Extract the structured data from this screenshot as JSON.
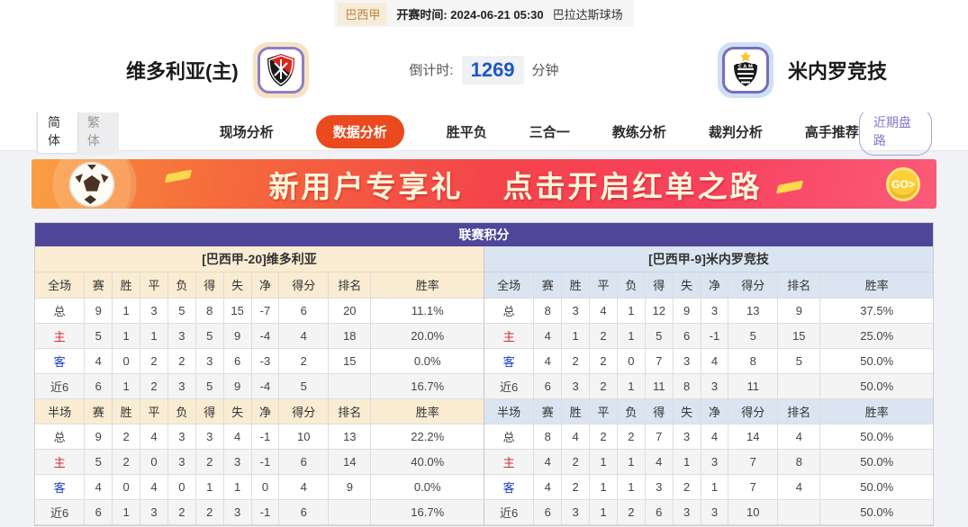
{
  "topbar": {
    "league": "巴西甲",
    "kickoff": "开赛时间: 2024-06-21 05:30",
    "venue": "巴拉达斯球场"
  },
  "header": {
    "home_team": "维多利亚(主)",
    "away_team": "米内罗竞技",
    "countdown_label": "倒计时:",
    "countdown_value": "1269",
    "countdown_unit": "分钟"
  },
  "nav": {
    "lang_simplified": "简体",
    "lang_traditional": "繁体",
    "items": [
      "现场分析",
      "数据分析",
      "胜平负",
      "三合一",
      "教练分析",
      "裁判分析",
      "高手推荐"
    ],
    "active_item": "数据分析",
    "recent_trends_label": "近期盘路"
  },
  "banner": {
    "text_left": "新用户专享礼",
    "text_right": "点击开启红单之路",
    "go_label": "GO>"
  },
  "league_table": {
    "title": "联赛积分",
    "left": {
      "team_header": "[巴西甲-20]维多利亚",
      "sections": [
        {
          "columns": [
            "全场",
            "赛",
            "胜",
            "平",
            "负",
            "得",
            "失",
            "净",
            "得分",
            "排名",
            "胜率"
          ],
          "rows": [
            [
              "总",
              "9",
              "1",
              "3",
              "5",
              "8",
              "15",
              "-7",
              "6",
              "20",
              "11.1%"
            ],
            [
              "主",
              "5",
              "1",
              "1",
              "3",
              "5",
              "9",
              "-4",
              "4",
              "18",
              "20.0%"
            ],
            [
              "客",
              "4",
              "0",
              "2",
              "2",
              "3",
              "6",
              "-3",
              "2",
              "15",
              "0.0%"
            ],
            [
              "近6",
              "6",
              "1",
              "2",
              "3",
              "5",
              "9",
              "-4",
              "5",
              "",
              "16.7%"
            ]
          ]
        },
        {
          "columns": [
            "半场",
            "赛",
            "胜",
            "平",
            "负",
            "得",
            "失",
            "净",
            "得分",
            "排名",
            "胜率"
          ],
          "rows": [
            [
              "总",
              "9",
              "2",
              "4",
              "3",
              "3",
              "4",
              "-1",
              "10",
              "13",
              "22.2%"
            ],
            [
              "主",
              "5",
              "2",
              "0",
              "3",
              "2",
              "3",
              "-1",
              "6",
              "14",
              "40.0%"
            ],
            [
              "客",
              "4",
              "0",
              "4",
              "0",
              "1",
              "1",
              "0",
              "4",
              "9",
              "0.0%"
            ],
            [
              "近6",
              "6",
              "1",
              "3",
              "2",
              "2",
              "3",
              "-1",
              "6",
              "",
              "16.7%"
            ]
          ]
        }
      ]
    },
    "right": {
      "team_header": "[巴西甲-9]米内罗竞技",
      "sections": [
        {
          "columns": [
            "全场",
            "赛",
            "胜",
            "平",
            "负",
            "得",
            "失",
            "净",
            "得分",
            "排名",
            "胜率"
          ],
          "rows": [
            [
              "总",
              "8",
              "3",
              "4",
              "1",
              "12",
              "9",
              "3",
              "13",
              "9",
              "37.5%"
            ],
            [
              "主",
              "4",
              "1",
              "2",
              "1",
              "5",
              "6",
              "-1",
              "5",
              "15",
              "25.0%"
            ],
            [
              "客",
              "4",
              "2",
              "2",
              "0",
              "7",
              "3",
              "4",
              "8",
              "5",
              "50.0%"
            ],
            [
              "近6",
              "6",
              "3",
              "2",
              "1",
              "11",
              "8",
              "3",
              "11",
              "",
              "50.0%"
            ]
          ]
        },
        {
          "columns": [
            "半场",
            "赛",
            "胜",
            "平",
            "负",
            "得",
            "失",
            "净",
            "得分",
            "排名",
            "胜率"
          ],
          "rows": [
            [
              "总",
              "8",
              "4",
              "2",
              "2",
              "7",
              "3",
              "4",
              "14",
              "4",
              "50.0%"
            ],
            [
              "主",
              "4",
              "2",
              "1",
              "1",
              "4",
              "1",
              "3",
              "7",
              "8",
              "50.0%"
            ],
            [
              "客",
              "4",
              "2",
              "1",
              "1",
              "3",
              "2",
              "1",
              "7",
              "4",
              "50.0%"
            ],
            [
              "近6",
              "6",
              "3",
              "1",
              "2",
              "6",
              "3",
              "3",
              "10",
              "",
              "50.0%"
            ]
          ]
        }
      ]
    }
  },
  "icons": {
    "home_logo": "vitoria-crest-icon",
    "away_logo": "atletico-mineiro-crest-icon",
    "banner_ball": "soccer-ball-icon",
    "go_button": "go-icon"
  },
  "colors": {
    "accent_orange": "#ea4a1e",
    "table_header_purple": "#4f4699",
    "countdown_blue": "#1f56c4",
    "left_header_bg": "#f9ecd2",
    "right_header_bg": "#dbe5f1",
    "row_label_home_red": "#d32f2f",
    "row_label_away_blue": "#1a3bcc"
  }
}
